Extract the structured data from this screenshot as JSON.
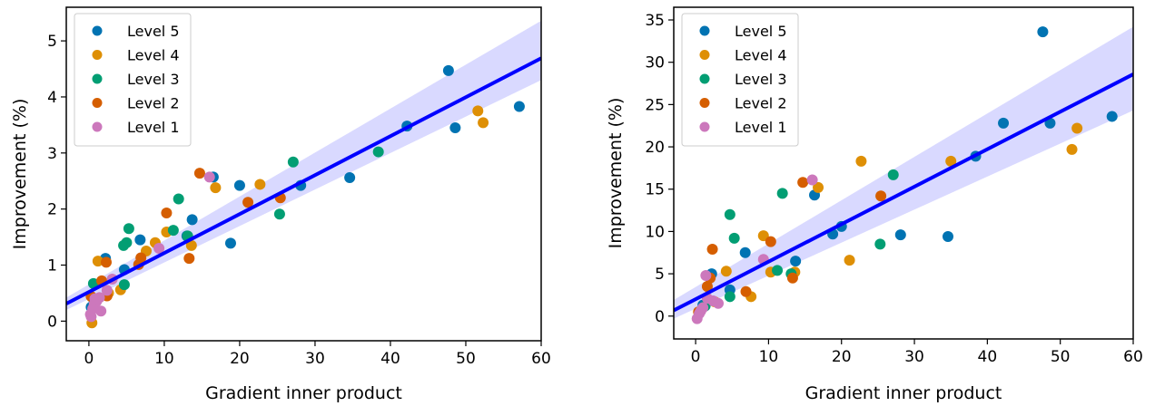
{
  "chart_data": [
    {
      "type": "scatter",
      "title": "",
      "xlabel": "Gradient inner product",
      "ylabel": "Improvement (%)",
      "xlim": [
        -3,
        60
      ],
      "ylim": [
        -0.35,
        5.6
      ],
      "xticks": [
        0,
        10,
        20,
        30,
        40,
        50,
        60
      ],
      "yticks": [
        0,
        1,
        2,
        3,
        4,
        5
      ],
      "grid": false,
      "legend_position": "top-left",
      "regression": {
        "slope": 0.0695,
        "intercept": 0.52,
        "ci_at_xmax": [
          4.3,
          5.36
        ],
        "ci_at_xmin": [
          0.2,
          0.42
        ],
        "color": "#0000ff"
      },
      "series": [
        {
          "name": "Level 5",
          "color": "#0173b2",
          "points": [
            [
              47.7,
              4.47
            ],
            [
              48.6,
              3.45
            ],
            [
              57.1,
              3.83
            ],
            [
              42.2,
              3.48
            ],
            [
              34.6,
              2.56
            ],
            [
              28.1,
              2.42
            ],
            [
              20.0,
              2.42
            ],
            [
              18.8,
              1.39
            ],
            [
              16.5,
              2.57
            ],
            [
              13.7,
              1.81
            ],
            [
              13.0,
              1.52
            ],
            [
              6.8,
              1.45
            ],
            [
              4.7,
              0.92
            ],
            [
              2.2,
              1.12
            ],
            [
              0.7,
              0.35
            ],
            [
              0.3,
              0.25
            ]
          ]
        },
        {
          "name": "Level 4",
          "color": "#de8f05",
          "points": [
            [
              51.6,
              3.75
            ],
            [
              52.3,
              3.54
            ],
            [
              22.7,
              2.44
            ],
            [
              16.8,
              2.38
            ],
            [
              13.6,
              1.35
            ],
            [
              10.3,
              1.59
            ],
            [
              8.8,
              1.4
            ],
            [
              7.6,
              1.25
            ],
            [
              4.2,
              0.56
            ],
            [
              1.2,
              1.07
            ],
            [
              2.6,
              0.5
            ],
            [
              0.4,
              -0.03
            ]
          ]
        },
        {
          "name": "Level 3",
          "color": "#029e73",
          "points": [
            [
              38.4,
              3.02
            ],
            [
              27.1,
              2.84
            ],
            [
              25.3,
              1.91
            ],
            [
              11.9,
              2.18
            ],
            [
              11.2,
              1.62
            ],
            [
              13.1,
              1.52
            ],
            [
              5.3,
              1.65
            ],
            [
              5.0,
              1.4
            ],
            [
              4.6,
              1.35
            ],
            [
              4.7,
              0.65
            ],
            [
              0.6,
              0.67
            ]
          ]
        },
        {
          "name": "Level 2",
          "color": "#d55e00",
          "points": [
            [
              14.7,
              2.64
            ],
            [
              10.3,
              1.93
            ],
            [
              25.4,
              2.2
            ],
            [
              21.1,
              2.12
            ],
            [
              13.3,
              1.12
            ],
            [
              6.9,
              1.13
            ],
            [
              6.6,
              1.01
            ],
            [
              2.3,
              1.05
            ],
            [
              1.7,
              0.72
            ],
            [
              0.3,
              0.44
            ],
            [
              2.4,
              0.45
            ]
          ]
        },
        {
          "name": "Level 1",
          "color": "#cc78bc",
          "points": [
            [
              16.0,
              2.57
            ],
            [
              9.3,
              1.3
            ],
            [
              2.4,
              0.55
            ],
            [
              3.1,
              0.75
            ],
            [
              1.4,
              0.42
            ],
            [
              1.0,
              0.35
            ],
            [
              0.7,
              0.3
            ],
            [
              0.5,
              0.22
            ],
            [
              0.2,
              0.12
            ],
            [
              0.3,
              0.08
            ],
            [
              1.6,
              0.18
            ],
            [
              0.8,
              0.4
            ]
          ]
        }
      ]
    },
    {
      "type": "scatter",
      "title": "",
      "xlabel": "Gradient inner product",
      "ylabel": "Improvement (%)",
      "xlim": [
        -3,
        60
      ],
      "ylim": [
        -2.7,
        36.5
      ],
      "xticks": [
        0,
        10,
        20,
        30,
        40,
        50,
        60
      ],
      "yticks": [
        0,
        5,
        10,
        15,
        20,
        25,
        30,
        35
      ],
      "grid": false,
      "legend_position": "top-left",
      "regression": {
        "slope": 0.443,
        "intercept": 2.0,
        "ci_at_xmax": [
          24.3,
          34.2
        ],
        "ci_at_xmin": [
          -0.3,
          1.9
        ],
        "color": "#0000ff"
      },
      "series": [
        {
          "name": "Level 5",
          "color": "#0173b2",
          "points": [
            [
              47.6,
              33.6
            ],
            [
              42.2,
              22.8
            ],
            [
              48.6,
              22.8
            ],
            [
              57.1,
              23.6
            ],
            [
              38.4,
              18.9
            ],
            [
              20.0,
              10.6
            ],
            [
              28.1,
              9.6
            ],
            [
              34.6,
              9.4
            ],
            [
              18.8,
              9.7
            ],
            [
              16.3,
              14.3
            ],
            [
              13.7,
              6.5
            ],
            [
              6.8,
              7.5
            ],
            [
              2.2,
              5.0
            ],
            [
              1.0,
              1.3
            ],
            [
              4.7,
              3.1
            ]
          ]
        },
        {
          "name": "Level 4",
          "color": "#de8f05",
          "points": [
            [
              22.7,
              18.3
            ],
            [
              35.0,
              18.3
            ],
            [
              51.6,
              19.7
            ],
            [
              52.3,
              22.2
            ],
            [
              16.8,
              15.2
            ],
            [
              9.3,
              9.5
            ],
            [
              10.3,
              5.2
            ],
            [
              13.6,
              5.2
            ],
            [
              21.1,
              6.6
            ],
            [
              7.6,
              2.3
            ],
            [
              4.2,
              5.3
            ],
            [
              2.6,
              1.7
            ]
          ]
        },
        {
          "name": "Level 3",
          "color": "#029e73",
          "points": [
            [
              27.1,
              16.7
            ],
            [
              4.7,
              12.0
            ],
            [
              11.9,
              14.5
            ],
            [
              5.3,
              9.2
            ],
            [
              25.3,
              8.5
            ],
            [
              11.2,
              5.4
            ],
            [
              13.1,
              5.0
            ],
            [
              4.7,
              2.3
            ],
            [
              1.3,
              1.2
            ]
          ]
        },
        {
          "name": "Level 2",
          "color": "#d55e00",
          "points": [
            [
              14.7,
              15.8
            ],
            [
              25.4,
              14.2
            ],
            [
              2.3,
              7.9
            ],
            [
              10.3,
              8.8
            ],
            [
              13.3,
              4.5
            ],
            [
              6.9,
              2.9
            ],
            [
              2.0,
              4.5
            ],
            [
              1.6,
              3.5
            ],
            [
              0.4,
              0.5
            ]
          ]
        },
        {
          "name": "Level 1",
          "color": "#cc78bc",
          "points": [
            [
              16.0,
              16.1
            ],
            [
              9.3,
              6.7
            ],
            [
              1.4,
              4.8
            ],
            [
              2.4,
              1.8
            ],
            [
              3.1,
              1.5
            ],
            [
              1.0,
              1.0
            ],
            [
              0.5,
              0.3
            ],
            [
              0.2,
              -0.3
            ],
            [
              0.7,
              0.6
            ],
            [
              1.6,
              2.1
            ]
          ]
        }
      ]
    }
  ]
}
